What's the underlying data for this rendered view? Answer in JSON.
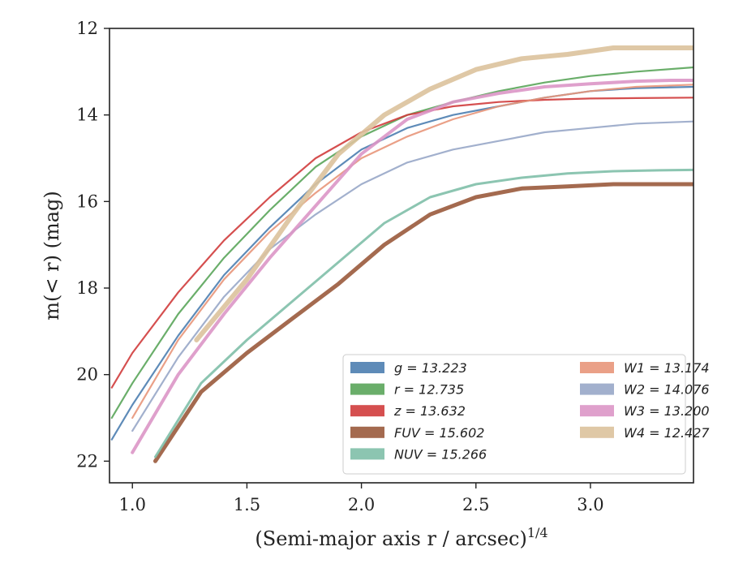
{
  "chart_data": {
    "type": "line",
    "xlabel": "(Semi-major axis r / arcsec)",
    "xlabel_superscript": "1/4",
    "ylabel": "m(< r) (mag)",
    "xlim": [
      0.9,
      3.45
    ],
    "ylim": [
      22.5,
      12.0
    ],
    "y_inverted": true,
    "x_ticks": [
      1.0,
      1.5,
      2.0,
      2.5,
      3.0
    ],
    "x_tick_labels": [
      "1.0",
      "1.5",
      "2.0",
      "2.5",
      "3.0"
    ],
    "y_ticks": [
      12,
      14,
      16,
      18,
      20,
      22
    ],
    "y_tick_labels": [
      "12",
      "14",
      "16",
      "18",
      "20",
      "22"
    ],
    "grid": false,
    "legend_position": "lower-right",
    "legend_columns": 2,
    "series": [
      {
        "name": "g = 13.223",
        "color": "#4c7eb0",
        "width": 2.2,
        "x": [
          0.91,
          1.0,
          1.2,
          1.4,
          1.6,
          1.8,
          2.0,
          2.2,
          2.4,
          2.6,
          2.8,
          3.0,
          3.2,
          3.45
        ],
        "y": [
          21.5,
          20.7,
          19.1,
          17.7,
          16.6,
          15.6,
          14.8,
          14.3,
          14.0,
          13.8,
          13.6,
          13.45,
          13.38,
          13.35
        ]
      },
      {
        "name": "r = 12.735",
        "color": "#5aa55a",
        "width": 2.2,
        "x": [
          0.91,
          1.0,
          1.2,
          1.4,
          1.6,
          1.8,
          2.0,
          2.2,
          2.4,
          2.6,
          2.8,
          3.0,
          3.2,
          3.45
        ],
        "y": [
          21.0,
          20.2,
          18.6,
          17.3,
          16.2,
          15.2,
          14.5,
          14.0,
          13.7,
          13.45,
          13.25,
          13.1,
          13.0,
          12.9
        ]
      },
      {
        "name": "z = 13.632",
        "color": "#d03c3c",
        "width": 2.2,
        "x": [
          0.91,
          1.0,
          1.2,
          1.4,
          1.6,
          1.8,
          2.0,
          2.2,
          2.4,
          2.6,
          2.8,
          3.0,
          3.2,
          3.45
        ],
        "y": [
          20.3,
          19.5,
          18.1,
          16.9,
          15.9,
          15.0,
          14.4,
          14.0,
          13.8,
          13.7,
          13.65,
          13.62,
          13.61,
          13.6
        ]
      },
      {
        "name": "FUV = 15.602",
        "color": "#9a5a3c",
        "width": 5,
        "x": [
          1.1,
          1.3,
          1.5,
          1.7,
          1.9,
          2.1,
          2.3,
          2.5,
          2.7,
          2.9,
          3.1,
          3.2,
          3.45
        ],
        "y": [
          22.0,
          20.4,
          19.5,
          18.7,
          17.9,
          17.0,
          16.3,
          15.9,
          15.7,
          15.65,
          15.6,
          15.6,
          15.6
        ]
      },
      {
        "name": "NUV = 15.266",
        "color": "#7fbfa9",
        "width": 3,
        "x": [
          1.1,
          1.3,
          1.5,
          1.7,
          1.9,
          2.1,
          2.3,
          2.5,
          2.7,
          2.9,
          3.1,
          3.3,
          3.45
        ],
        "y": [
          21.9,
          20.2,
          19.2,
          18.3,
          17.4,
          16.5,
          15.9,
          15.6,
          15.45,
          15.35,
          15.3,
          15.28,
          15.27
        ]
      },
      {
        "name": "W1 = 13.174",
        "color": "#e8967a",
        "width": 2.2,
        "x": [
          1.0,
          1.2,
          1.4,
          1.6,
          1.8,
          2.0,
          2.2,
          2.4,
          2.6,
          2.8,
          3.0,
          3.2,
          3.45
        ],
        "y": [
          21.0,
          19.2,
          17.8,
          16.7,
          15.8,
          15.0,
          14.5,
          14.1,
          13.8,
          13.6,
          13.45,
          13.35,
          13.3
        ]
      },
      {
        "name": "W2 = 14.076",
        "color": "#98a7c8",
        "width": 2.2,
        "x": [
          1.0,
          1.2,
          1.4,
          1.6,
          1.8,
          2.0,
          2.2,
          2.4,
          2.6,
          2.8,
          3.0,
          3.2,
          3.45
        ],
        "y": [
          21.3,
          19.6,
          18.2,
          17.1,
          16.3,
          15.6,
          15.1,
          14.8,
          14.6,
          14.4,
          14.3,
          14.2,
          14.15
        ]
      },
      {
        "name": "W3 = 13.200",
        "color": "#dc96c6",
        "width": 4,
        "x": [
          1.0,
          1.2,
          1.4,
          1.6,
          1.8,
          2.0,
          2.2,
          2.4,
          2.6,
          2.8,
          3.0,
          3.2,
          3.35,
          3.45
        ],
        "y": [
          21.8,
          20.0,
          18.6,
          17.3,
          16.1,
          14.9,
          14.1,
          13.7,
          13.5,
          13.35,
          13.28,
          13.22,
          13.2,
          13.2
        ]
      },
      {
        "name": "W4 = 12.427",
        "color": "#dcc29c",
        "width": 6,
        "x": [
          1.28,
          1.5,
          1.7,
          1.9,
          2.1,
          2.3,
          2.5,
          2.7,
          2.9,
          3.1,
          3.3,
          3.45
        ],
        "y": [
          19.2,
          17.8,
          16.3,
          14.9,
          14.0,
          13.4,
          12.95,
          12.7,
          12.6,
          12.45,
          12.45,
          12.45
        ]
      }
    ]
  }
}
